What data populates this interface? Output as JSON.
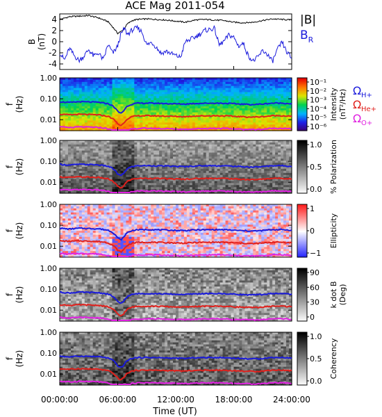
{
  "chart_data": {
    "type": "line",
    "title": "ACE Mag 2011-054",
    "xlabel": "Time (UT)",
    "x_ticks": [
      "00:00:00",
      "06:00:00",
      "12:00:00",
      "18:00:00",
      "24:00:00"
    ],
    "x_range_hours": [
      0,
      24
    ],
    "b_panel": {
      "ylabel": "B",
      "yunit": "(nT)",
      "ylim": [
        -5,
        5
      ],
      "y_ticks": [
        "4",
        "2",
        "0",
        "-2",
        "-4"
      ],
      "legend": [
        "|B|",
        "B_R"
      ],
      "legend_colors": [
        "#000000",
        "#1a1adc"
      ],
      "series": [
        {
          "name": "|B|",
          "color": "#000000",
          "hours": [
            0,
            1,
            2,
            3,
            4,
            5,
            5.5,
            6,
            6.5,
            7,
            7.5,
            8,
            9,
            10,
            11,
            12,
            13,
            14,
            15,
            16,
            17,
            18,
            19,
            20,
            21,
            22,
            23,
            24
          ],
          "values": [
            4.0,
            4.5,
            4.6,
            4.7,
            4.3,
            3.6,
            2.6,
            1.5,
            2.0,
            3.2,
            3.8,
            4.0,
            4.1,
            4.0,
            3.9,
            3.7,
            3.5,
            3.9,
            4.0,
            3.9,
            3.8,
            3.5,
            3.4,
            3.5,
            3.8,
            4.1,
            4.0,
            3.9
          ]
        },
        {
          "name": "B_R",
          "color": "#1a1adc",
          "hours": [
            0,
            0.5,
            1,
            1.5,
            2,
            2.5,
            3,
            3.5,
            4,
            4.5,
            5,
            5.5,
            6,
            6.3,
            6.7,
            7,
            7.5,
            8,
            8.5,
            9,
            9.5,
            10,
            10.5,
            11,
            12,
            12.5,
            13,
            13.5,
            14,
            15,
            16,
            16.5,
            17,
            17.5,
            18,
            18.5,
            19,
            19.5,
            20,
            20.5,
            21,
            21.5,
            22,
            22.5,
            23,
            23.5,
            24
          ],
          "values": [
            -2.0,
            -3.3,
            -1.2,
            -2.5,
            -3.4,
            -2.6,
            -1.4,
            -2.6,
            -2.0,
            -3.3,
            -0.5,
            -2.1,
            -0.8,
            1.2,
            2.4,
            1.3,
            2.1,
            2.5,
            1.8,
            -0.6,
            -0.1,
            -1.0,
            -2.1,
            -1.7,
            -2.5,
            -2.8,
            0.0,
            0.4,
            0.8,
            2.0,
            2.4,
            -0.6,
            0.1,
            1.2,
            0.8,
            -0.8,
            -0.3,
            -2.5,
            -3.5,
            -2.8,
            -1.6,
            -2.3,
            -3.6,
            -1.5,
            -0.1,
            -1.9,
            -3.0
          ]
        }
      ]
    },
    "frequency_axis": {
      "ylabel": "f",
      "yunit": "(Hz)",
      "ylim": [
        0.003,
        1.0
      ],
      "scale": "log",
      "y_ticks": [
        "1.00",
        "0.10",
        "0.01"
      ]
    },
    "gyro_legend": {
      "labels": [
        "Ω",
        "Ω",
        "Ω"
      ],
      "subscripts": [
        "H+",
        "He+",
        "O+"
      ],
      "colors": [
        "#1a1adc",
        "#e0201c",
        "#e020e0"
      ]
    },
    "gyro_lines": {
      "hours": [
        0,
        1,
        2,
        3,
        4,
        5,
        5.5,
        6,
        6.3,
        6.6,
        7,
        7.5,
        8,
        9,
        10,
        11,
        12,
        13,
        14,
        15,
        16,
        17,
        18,
        19,
        20,
        21,
        22,
        23,
        24
      ],
      "H+": [
        0.072,
        0.066,
        0.072,
        0.07,
        0.068,
        0.058,
        0.045,
        0.025,
        0.02,
        0.026,
        0.045,
        0.056,
        0.061,
        0.062,
        0.061,
        0.059,
        0.057,
        0.056,
        0.06,
        0.061,
        0.062,
        0.061,
        0.058,
        0.055,
        0.053,
        0.056,
        0.062,
        0.062,
        0.058
      ],
      "He+": [
        0.018,
        0.017,
        0.018,
        0.0175,
        0.017,
        0.0145,
        0.011,
        0.0064,
        0.0052,
        0.0066,
        0.011,
        0.014,
        0.0152,
        0.0155,
        0.0152,
        0.0148,
        0.0143,
        0.014,
        0.015,
        0.0152,
        0.0155,
        0.0152,
        0.0145,
        0.0138,
        0.0133,
        0.014,
        0.0155,
        0.0155,
        0.0145
      ],
      "O+": [
        0.0045,
        0.0042,
        0.0045,
        0.0044,
        0.0043,
        0.0037,
        0.0029,
        0.0018,
        0.0015,
        0.0018,
        0.0029,
        0.0036,
        0.0038,
        0.0039,
        0.0038,
        0.0037,
        0.0036,
        0.0035,
        0.0037,
        0.0038,
        0.0039,
        0.0038,
        0.0036,
        0.0035,
        0.0034,
        0.0035,
        0.0039,
        0.0039,
        0.0036
      ]
    },
    "spectral_panels": [
      {
        "id": "intensity",
        "type": "heatmap",
        "colormap": "rainbow",
        "colorbar_label": "Intensity",
        "colorbar_unit": "(nT²/Hz)",
        "colorbar_ticks": [
          "10⁻¹",
          "10⁻²",
          "10⁻³",
          "10⁻⁴",
          "10⁻⁵",
          "10⁻⁶"
        ],
        "colorbar_range_log10": [
          -6.5,
          -0.5
        ],
        "show_legend": true
      },
      {
        "id": "polarization",
        "type": "heatmap",
        "colormap": "grayscale",
        "colorbar_label": "% Polarization",
        "colorbar_unit": "",
        "colorbar_ticks": [
          "1.0",
          "0.5",
          "0.0"
        ],
        "colorbar_range": [
          0,
          1
        ],
        "show_legend": false
      },
      {
        "id": "ellipticity",
        "type": "heatmap",
        "colormap": "blue-white-red",
        "colorbar_label": "Ellipticity",
        "colorbar_unit": "",
        "colorbar_ticks": [
          "1",
          "0",
          "−1"
        ],
        "colorbar_range": [
          -1,
          1
        ],
        "show_legend": false
      },
      {
        "id": "kdotb",
        "type": "heatmap",
        "colormap": "grayscale",
        "colorbar_label": "k dot B",
        "colorbar_unit": "(Deg)",
        "colorbar_ticks": [
          "90",
          "60",
          "30",
          "0"
        ],
        "colorbar_range": [
          0,
          90
        ],
        "show_legend": false
      },
      {
        "id": "coherency",
        "type": "heatmap",
        "colormap": "grayscale",
        "colorbar_label": "Coherency",
        "colorbar_unit": "",
        "colorbar_ticks": [
          "1.0",
          "0.5",
          "0.0"
        ],
        "colorbar_range": [
          0,
          1
        ],
        "show_legend": false
      }
    ]
  }
}
